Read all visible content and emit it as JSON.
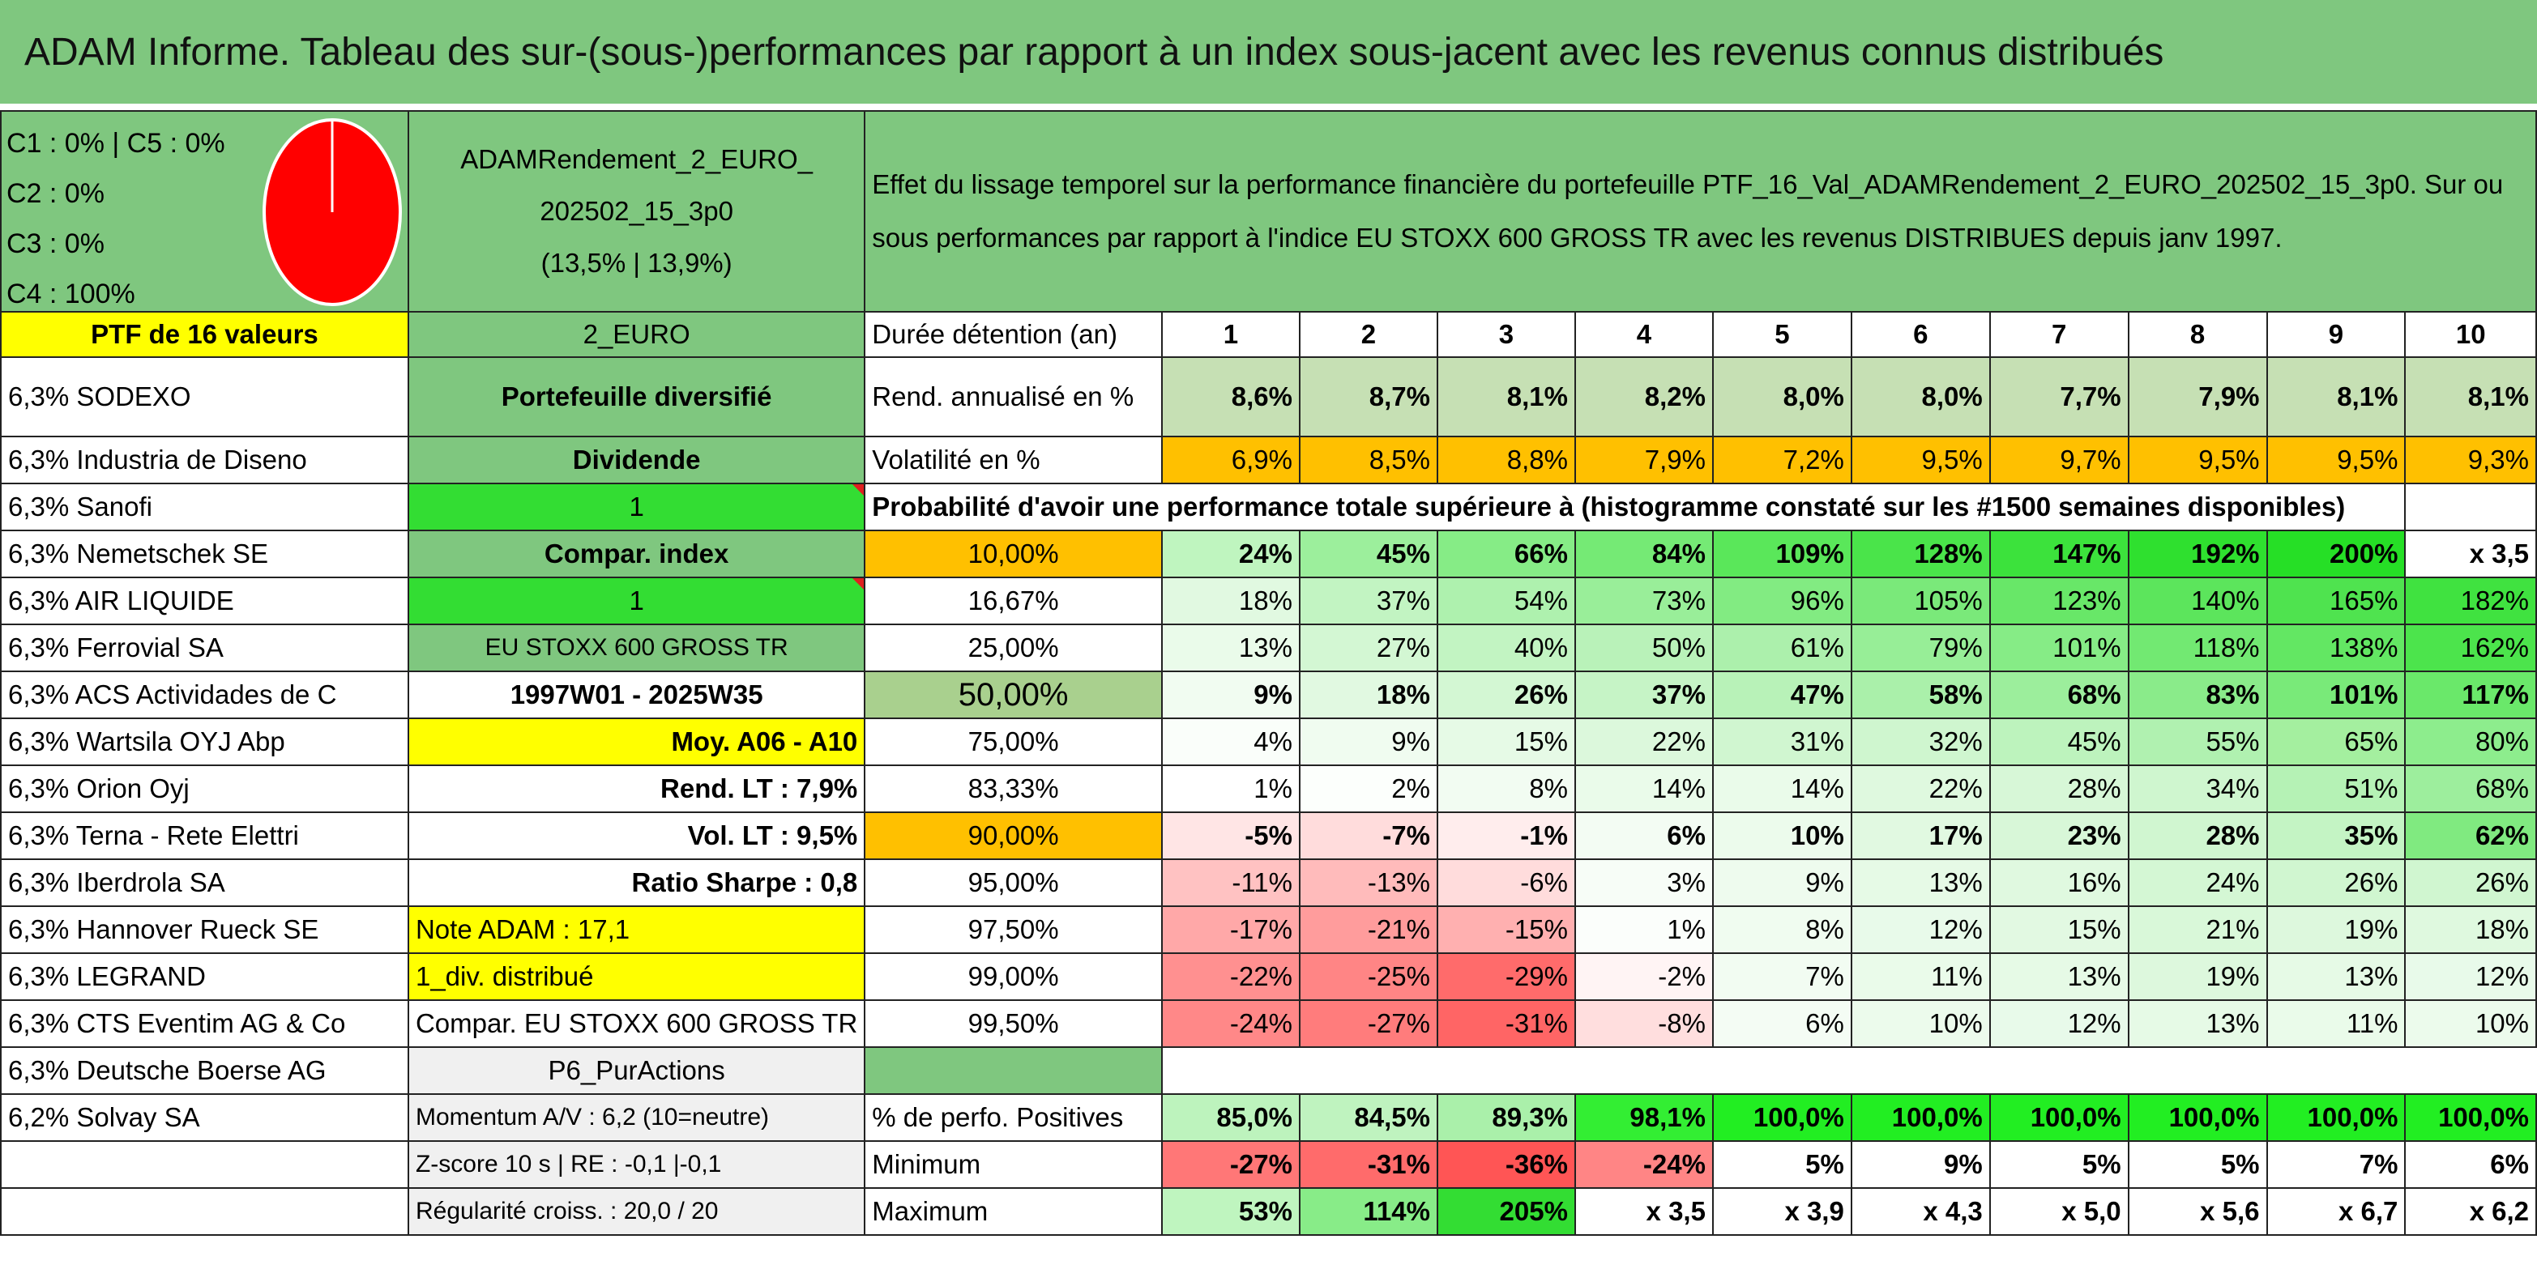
{
  "title": "ADAM Informe. Tableau des sur-(sous-)performances par rapport à un index sous-jacent avec les revenus connus distribués",
  "allocation": [
    "C1 : 0% | C5 : 0%",
    "C2 : 0%",
    "C3 : 0%",
    "C4 : 100%"
  ],
  "pie_colors": {
    "fill": "#ff0000",
    "stroke": "#ffffff"
  },
  "portfolio_name": [
    "ADAMRendement_2_EURO_",
    "202502_15_3p0",
    "(13,5% | 13,9%)"
  ],
  "effect_text": "Effet du lissage temporel sur la performance financière du portefeuille PTF_16_Val_ADAMRendement_2_EURO_202502_15_3p0. Sur ou sous performances par rapport à l'indice EU STOXX 600 GROSS TR avec les revenus DISTRIBUES depuis janv 1997.",
  "ptf_label": "PTF de 16 valeurs",
  "currency": "2_EURO",
  "holding_label": "Durée détention (an)",
  "years": [
    "1",
    "2",
    "3",
    "4",
    "5",
    "6",
    "7",
    "8",
    "9",
    "10"
  ],
  "holdings": [
    "6,3% SODEXO",
    "6,3% Industria de Diseno",
    "6,3% Sanofi",
    "6,3% Nemetschek SE",
    "6,3% AIR LIQUIDE",
    "6,3% Ferrovial SA",
    "6,3% ACS Actividades de C",
    "6,3% Wartsila OYJ Abp",
    "6,3% Orion Oyj",
    "6,3% Terna - Rete Elettri",
    "6,3% Iberdrola SA",
    "6,3% Hannover Rueck SE",
    "6,3% LEGRAND",
    "6,3% CTS Eventim AG & Co",
    "6,3% Deutsche Boerse AG",
    "6,2% Solvay SA",
    "",
    ""
  ],
  "info": {
    "diversified": "Portefeuille diversifié",
    "dividend": "Dividende",
    "one_a": "1",
    "compar_index": "Compar. index",
    "one_b": "1",
    "index_name": "EU STOXX 600 GROSS TR",
    "period": "1997W01 - 2025W35",
    "moy": "Moy. A06 - A10",
    "rend_lt": "Rend. LT : 7,9%",
    "vol_lt": "Vol. LT : 9,5%",
    "sharpe": "Ratio Sharpe : 0,8",
    "note": "Note ADAM : 17,1",
    "div": "1_div. distribué",
    "compar_full": "Compar. EU STOXX 600 GROSS TR",
    "strategy": "P6_PurActions",
    "momentum": "Momentum A/V : 6,2 (10=neutre)",
    "zscore": "Z-score 10 s | RE : -0,1 |-0,1",
    "regularite": "Régularité croiss. : 20,0 / 20"
  },
  "rend_label": "Rend. annualisé en %",
  "rend": [
    "8,6%",
    "8,7%",
    "8,1%",
    "8,2%",
    "8,0%",
    "8,0%",
    "7,7%",
    "7,9%",
    "8,1%",
    "8,1%"
  ],
  "vol_label": "Volatilité en %",
  "vol": [
    "6,9%",
    "8,5%",
    "8,8%",
    "7,9%",
    "7,2%",
    "9,5%",
    "9,7%",
    "9,5%",
    "9,5%",
    "9,3%"
  ],
  "prob_label": "Probabilité d'avoir une performance totale supérieure à (histogramme constaté sur les #1500 semaines disponibles)",
  "prob_rows": [
    {
      "p": "10,00%",
      "v": [
        "24%",
        "45%",
        "66%",
        "84%",
        "109%",
        "128%",
        "147%",
        "192%",
        "200%",
        "x 3,5"
      ],
      "bold": true
    },
    {
      "p": "16,67%",
      "v": [
        "18%",
        "37%",
        "54%",
        "73%",
        "96%",
        "105%",
        "123%",
        "140%",
        "165%",
        "182%"
      ]
    },
    {
      "p": "25,00%",
      "v": [
        "13%",
        "27%",
        "40%",
        "50%",
        "61%",
        "79%",
        "101%",
        "118%",
        "138%",
        "162%"
      ]
    },
    {
      "p": "50,00%",
      "v": [
        "9%",
        "18%",
        "26%",
        "37%",
        "47%",
        "58%",
        "68%",
        "83%",
        "101%",
        "117%"
      ],
      "big": true
    },
    {
      "p": "75,00%",
      "v": [
        "4%",
        "9%",
        "15%",
        "22%",
        "31%",
        "32%",
        "45%",
        "55%",
        "65%",
        "80%"
      ]
    },
    {
      "p": "83,33%",
      "v": [
        "1%",
        "2%",
        "8%",
        "14%",
        "14%",
        "22%",
        "28%",
        "34%",
        "51%",
        "68%"
      ]
    },
    {
      "p": "90,00%",
      "v": [
        "-5%",
        "-7%",
        "-1%",
        "6%",
        "10%",
        "17%",
        "23%",
        "28%",
        "35%",
        "62%"
      ],
      "bold": true
    },
    {
      "p": "95,00%",
      "v": [
        "-11%",
        "-13%",
        "-6%",
        "3%",
        "9%",
        "13%",
        "16%",
        "24%",
        "26%",
        "26%"
      ]
    },
    {
      "p": "97,50%",
      "v": [
        "-17%",
        "-21%",
        "-15%",
        "1%",
        "8%",
        "12%",
        "15%",
        "21%",
        "19%",
        "18%"
      ]
    },
    {
      "p": "99,00%",
      "v": [
        "-22%",
        "-25%",
        "-29%",
        "-2%",
        "7%",
        "11%",
        "13%",
        "19%",
        "13%",
        "12%"
      ]
    },
    {
      "p": "99,50%",
      "v": [
        "-24%",
        "-27%",
        "-31%",
        "-8%",
        "6%",
        "10%",
        "12%",
        "13%",
        "11%",
        "10%"
      ]
    }
  ],
  "pos_label": "% de perfo. Positives",
  "pos": [
    "85,0%",
    "84,5%",
    "89,3%",
    "98,1%",
    "100,0%",
    "100,0%",
    "100,0%",
    "100,0%",
    "100,0%",
    "100,0%"
  ],
  "min_label": "Minimum",
  "min": [
    "-27%",
    "-31%",
    "-36%",
    "-24%",
    "5%",
    "9%",
    "5%",
    "5%",
    "7%",
    "6%"
  ],
  "max_label": "Maximum",
  "max": [
    "53%",
    "114%",
    "205%",
    "x 3,5",
    "x 3,9",
    "x 4,3",
    "x 5,0",
    "x 5,6",
    "x 6,7",
    "x 6,2"
  ],
  "colors": {
    "sheet_green": "#7fc77f",
    "rend_bg": [
      "#c6e0b4",
      "#c6e0b4",
      "#c6e0b4",
      "#c6e0b4",
      "#c6e0b4",
      "#c6e0b4",
      "#c6e0b4",
      "#c6e0b4",
      "#c6e0b4",
      "#c6e0b4"
    ],
    "vol_bg": "#ffc000",
    "prob_bg": [
      [
        "#bff5bf",
        "#9cef9c",
        "#86ec86",
        "#75ea75",
        "#5ae75a",
        "#4ae44a",
        "#3ce23c",
        "#2fe02f",
        "#26df26",
        "#ffffff"
      ],
      [
        "#e1f9e1",
        "#c2f4c2",
        "#aef1ae",
        "#99ee99",
        "#82eb82",
        "#7ae97a",
        "#68e768",
        "#5ce55c",
        "#4fe34f",
        "#40e240"
      ],
      [
        "#eafbea",
        "#d3f7d3",
        "#c2f4c2",
        "#b9f2b9",
        "#acf0ac",
        "#97ee97",
        "#86ec86",
        "#72e972",
        "#63e763",
        "#4ce44c"
      ],
      [
        "#f1fcf1",
        "#e1f9e1",
        "#d3f7d3",
        "#c6f4c6",
        "#b8f2b8",
        "#aaf0aa",
        "#9cee9c",
        "#8aeb8a",
        "#79ea79",
        "#6ae86a"
      ],
      [
        "#fafefa",
        "#f0fcf0",
        "#e6fae6",
        "#dcf8dc",
        "#d0f6d0",
        "#cff6cf",
        "#bdf3bd",
        "#b0f1b0",
        "#a4ef9f",
        "#8ded8d"
      ],
      [
        "#ffffff",
        "#fcfffc",
        "#f2fcf2",
        "#eafbea",
        "#eafbea",
        "#dff9df",
        "#d7f7d7",
        "#cff6cf",
        "#b5f2b5",
        "#9dee9d"
      ],
      [
        "#ffe5e5",
        "#ffdcdc",
        "#ffeded",
        "#f3fcf3",
        "#ecfbec",
        "#e1f9e1",
        "#d8f7d8",
        "#d0f6d0",
        "#c4f4c4",
        "#80ea80"
      ],
      [
        "#ffc2c2",
        "#ffbbbb",
        "#ffdcdc",
        "#f7fdf7",
        "#eefbee",
        "#e6fae6",
        "#e0f9e0",
        "#d4f7d4",
        "#d0f6d0",
        "#d0f6d0"
      ],
      [
        "#ffa8a8",
        "#ff9c9c",
        "#ffb0b0",
        "#fbfefb",
        "#f0fcf0",
        "#e8faea",
        "#e2f9e2",
        "#d9f8d9",
        "#ddf8dd",
        "#dff9df"
      ],
      [
        "#ff9090",
        "#ff8585",
        "#ff6b6b",
        "#fff4f4",
        "#f2fcf2",
        "#eafbea",
        "#e6fae6",
        "#ddf8dd",
        "#e6fae6",
        "#e8faea"
      ],
      [
        "#ff8888",
        "#ff7c7c",
        "#ff6565",
        "#ffdede",
        "#f4fcf4",
        "#ecfbec",
        "#e8faea",
        "#e6fae6",
        "#eafbea",
        "#ecfbec"
      ]
    ],
    "pos_bg": [
      "#bdf3bd",
      "#bff3bf",
      "#aaf0aa",
      "#33ee33",
      "#22ee22",
      "#22ee22",
      "#22ee22",
      "#22ee22",
      "#22ee22",
      "#22ee22"
    ],
    "min_bg": [
      "#ff7777",
      "#ff6b6b",
      "#ff5555",
      "#ff8585",
      "#ffffff",
      "#ffffff",
      "#ffffff",
      "#ffffff",
      "#ffffff",
      "#ffffff"
    ],
    "max_bg": [
      "#bff5bf",
      "#88ec88",
      "#33dd33",
      "#ffffff",
      "#ffffff",
      "#ffffff",
      "#ffffff",
      "#ffffff",
      "#ffffff",
      "#ffffff"
    ]
  },
  "chart_data": {
    "type": "pie",
    "categories": [
      "C1",
      "C2",
      "C3",
      "C4",
      "C5"
    ],
    "values": [
      0,
      0,
      0,
      100,
      0
    ]
  }
}
